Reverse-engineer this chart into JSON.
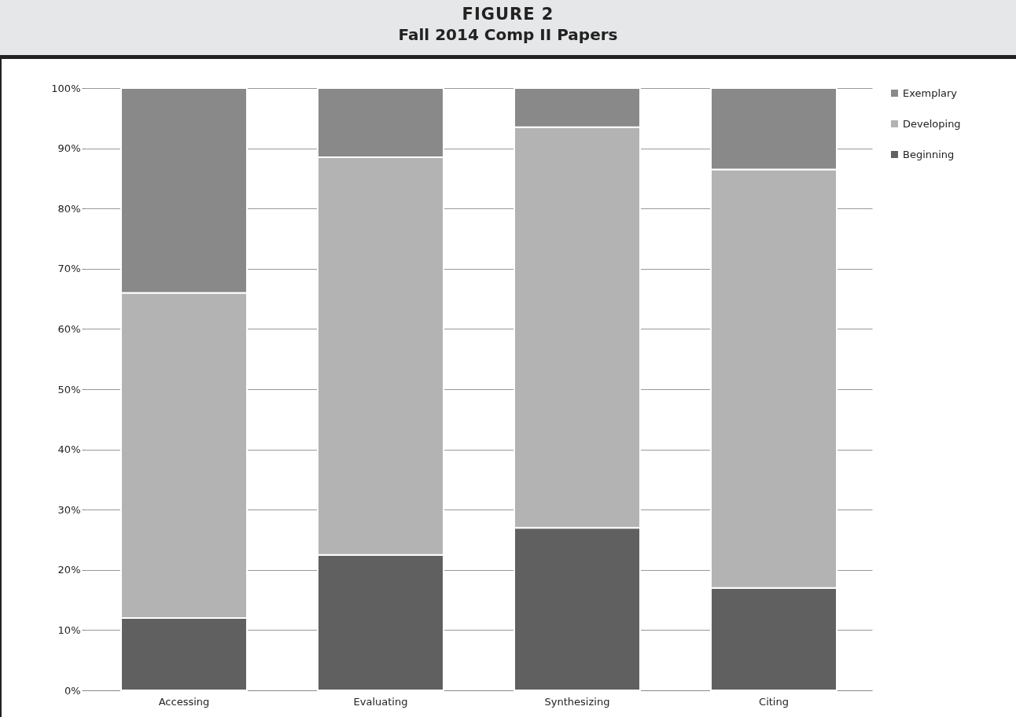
{
  "chart_data": {
    "type": "bar",
    "title": "FIGURE 2",
    "subtitle": "Fall 2014 Comp II Papers",
    "categories": [
      "Accessing",
      "Evaluating",
      "Synthesizing",
      "Citing"
    ],
    "stacked": true,
    "series": [
      {
        "name": "Beginning",
        "color": "#606060",
        "values": [
          12,
          22.5,
          27,
          17
        ]
      },
      {
        "name": "Developing",
        "color": "#b3b3b3",
        "values": [
          54,
          66,
          66.5,
          69.5
        ]
      },
      {
        "name": "Exemplary",
        "color": "#898989",
        "values": [
          34,
          11.5,
          6.5,
          13.5
        ]
      }
    ],
    "ylim": [
      0,
      100
    ],
    "yticks": [
      {
        "value": 0,
        "label": "0%"
      },
      {
        "value": 10,
        "label": "10%"
      },
      {
        "value": 20,
        "label": "20%"
      },
      {
        "value": 30,
        "label": "30%"
      },
      {
        "value": 40,
        "label": "40%"
      },
      {
        "value": 50,
        "label": "50%"
      },
      {
        "value": 60,
        "label": "60%"
      },
      {
        "value": 70,
        "label": "70%"
      },
      {
        "value": 80,
        "label": "80%"
      },
      {
        "value": 90,
        "label": "90%"
      },
      {
        "value": 100,
        "label": "100%"
      }
    ],
    "grid": "y",
    "legend": "right"
  }
}
